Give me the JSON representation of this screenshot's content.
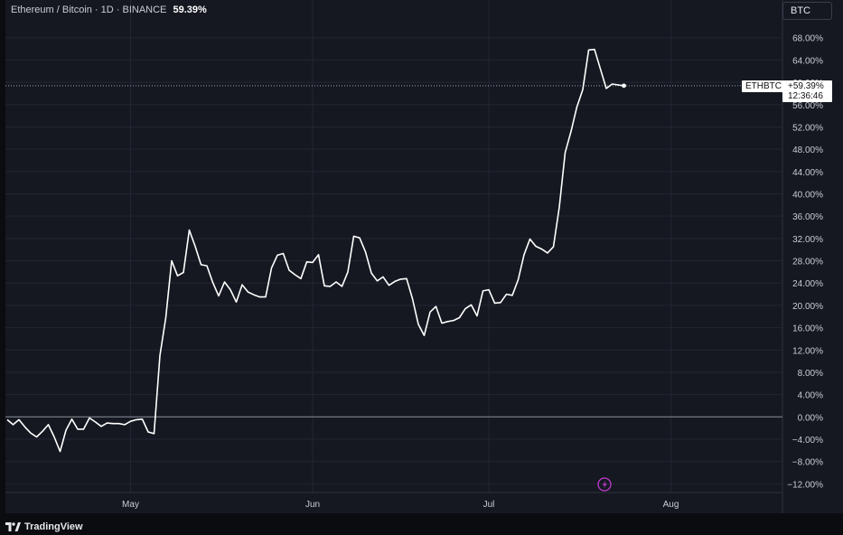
{
  "header": {
    "symbol_title": "Ethereum / Bitcoin · 1D · BINANCE",
    "change": "59.39%"
  },
  "currency_button": "BTC",
  "last_price": {
    "symbol": "ETHBTC",
    "value": "+59.39%",
    "countdown": "12:36:46"
  },
  "footer": {
    "brand": "TradingView"
  },
  "colors": {
    "background": "#161821",
    "line": "#ffffff",
    "zero_line": "#8a8d96",
    "event_icon": "#c13bd1"
  },
  "chart_data": {
    "type": "line",
    "title": "",
    "xlabel": "",
    "ylabel": "",
    "y_unit": "%",
    "ylim": [
      -13,
      71
    ],
    "x_ticks": [
      "May",
      "Jun",
      "Jul",
      "Aug"
    ],
    "y_ticks": [
      "68.00%",
      "64.00%",
      "60.00%",
      "56.00%",
      "52.00%",
      "48.00%",
      "44.00%",
      "40.00%",
      "36.00%",
      "32.00%",
      "28.00%",
      "24.00%",
      "20.00%",
      "16.00%",
      "12.00%",
      "8.00%",
      "4.00%",
      "0.00%",
      "−4.00%",
      "−8.00%",
      "−12.00%"
    ],
    "y_tick_values": [
      68,
      64,
      60,
      56,
      52,
      48,
      44,
      40,
      36,
      32,
      28,
      24,
      20,
      16,
      12,
      8,
      4,
      0,
      -4,
      -8,
      -12
    ],
    "grid": true,
    "series": [
      {
        "x": [
          "2024-04-10",
          "2024-04-11",
          "2024-04-12",
          "2024-04-13",
          "2024-04-14",
          "2024-04-15",
          "2024-04-16",
          "2024-04-17",
          "2024-04-18",
          "2024-04-19",
          "2024-04-20",
          "2024-04-21",
          "2024-04-22",
          "2024-04-23",
          "2024-04-24",
          "2024-04-25",
          "2024-04-26",
          "2024-04-27",
          "2024-04-28",
          "2024-04-29",
          "2024-04-30",
          "2024-05-01",
          "2024-05-02",
          "2024-05-03",
          "2024-05-04",
          "2024-05-05",
          "2024-05-06",
          "2024-05-07",
          "2024-05-08",
          "2024-05-09",
          "2024-05-10",
          "2024-05-11",
          "2024-05-12",
          "2024-05-13",
          "2024-05-14",
          "2024-05-15",
          "2024-05-16",
          "2024-05-17",
          "2024-05-18",
          "2024-05-19",
          "2024-05-20",
          "2024-05-21",
          "2024-05-22",
          "2024-05-23",
          "2024-05-24",
          "2024-05-25",
          "2024-05-26",
          "2024-05-27",
          "2024-05-28",
          "2024-05-29",
          "2024-05-30",
          "2024-05-31",
          "2024-06-01",
          "2024-06-02",
          "2024-06-03",
          "2024-06-04",
          "2024-06-05",
          "2024-06-06",
          "2024-06-07",
          "2024-06-08",
          "2024-06-09",
          "2024-06-10",
          "2024-06-11",
          "2024-06-12",
          "2024-06-13",
          "2024-06-14",
          "2024-06-15",
          "2024-06-16",
          "2024-06-17",
          "2024-06-18",
          "2024-06-19",
          "2024-06-20",
          "2024-06-21",
          "2024-06-22",
          "2024-06-23",
          "2024-06-24",
          "2024-06-25",
          "2024-06-26",
          "2024-06-27",
          "2024-06-28",
          "2024-06-29",
          "2024-06-30",
          "2024-07-01",
          "2024-07-02",
          "2024-07-03",
          "2024-07-04",
          "2024-07-05",
          "2024-07-06",
          "2024-07-07",
          "2024-07-08",
          "2024-07-09",
          "2024-07-10",
          "2024-07-11",
          "2024-07-12",
          "2024-07-13",
          "2024-07-14",
          "2024-07-15",
          "2024-07-16",
          "2024-07-17",
          "2024-07-18",
          "2024-07-19",
          "2024-07-20",
          "2024-07-21",
          "2024-07-22",
          "2024-07-23",
          "2024-07-24"
        ],
        "values": [
          -0.5,
          -1.4,
          -0.5,
          -1.8,
          -2.9,
          -3.6,
          -2.6,
          -1.4,
          -3.6,
          -6.2,
          -2.4,
          -0.4,
          -2.2,
          -2.2,
          -0.2,
          -0.9,
          -1.7,
          -1.1,
          -1.2,
          -1.2,
          -1.4,
          -0.8,
          -0.5,
          -0.4,
          -2.7,
          -3.0,
          11.0,
          17.8,
          28.0,
          25.3,
          25.9,
          33.5,
          30.6,
          27.3,
          27.1,
          24.1,
          21.7,
          24.2,
          22.8,
          20.6,
          23.7,
          22.4,
          21.9,
          21.5,
          21.5,
          26.7,
          29.0,
          29.3,
          26.3,
          25.5,
          24.8,
          27.8,
          27.7,
          29.1,
          23.5,
          23.4,
          24.2,
          23.4,
          26.0,
          32.4,
          32.1,
          29.6,
          25.8,
          24.4,
          25.1,
          23.6,
          24.3,
          24.7,
          24.8,
          21.2,
          16.6,
          14.6,
          18.8,
          19.8,
          16.8,
          17.1,
          17.3,
          17.8,
          19.4,
          20.1,
          18.1,
          22.6,
          22.8,
          20.4,
          20.5,
          22.0,
          21.8,
          24.6,
          29.1,
          31.9,
          30.6,
          30.1,
          29.4,
          30.5,
          37.6,
          47.4,
          51.2,
          55.6,
          58.7,
          65.8,
          65.9,
          62.4,
          58.9,
          59.7,
          null,
          59.39
        ]
      }
    ],
    "last_value": 59.39
  }
}
